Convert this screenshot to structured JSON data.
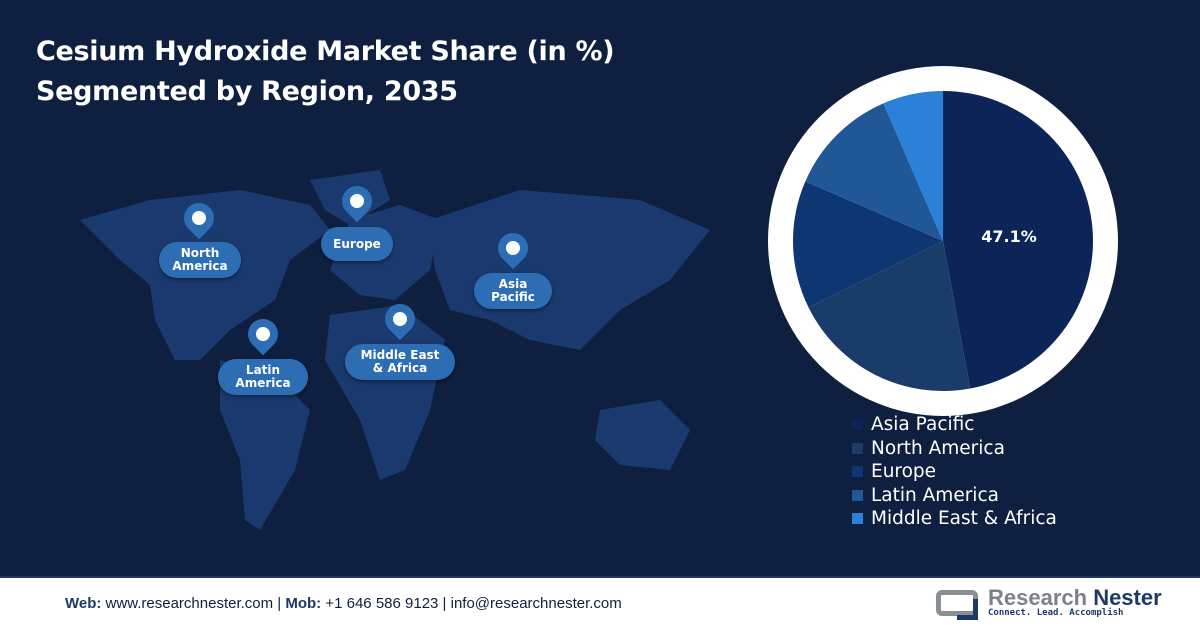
{
  "title_line1": "Cesium Hydroxide Market Share (in %)",
  "title_line2": "Segmented by Region, 2035",
  "map_labels": [
    "North\nAmerica",
    "Europe",
    "Asia\nPacific",
    "Latin\nAmerica",
    "Middle East\n& Africa"
  ],
  "chart_data": {
    "type": "pie",
    "title": "Cesium Hydroxide Market Share (in %) Segmented by Region, 2035",
    "categories": [
      "Asia Pacific",
      "North America",
      "Europe",
      "Latin America",
      "Middle East & Africa"
    ],
    "values": [
      47.1,
      20.6,
      13.8,
      12.0,
      6.5
    ],
    "data_labels": [
      "47.1%",
      "",
      "",
      "",
      ""
    ],
    "colors": [
      "#0c2457",
      "#1a3c69",
      "#0d3673",
      "#1f5797",
      "#2b80d8"
    ],
    "legend_position": "bottom-right",
    "start_angle": "12 o'clock, clockwise"
  },
  "footer": {
    "web_label": "Web:",
    "web": " www.researchnester.com | ",
    "mob_label": "Mob:",
    "mob": " +1 646 586 9123 | info@researchnester.com",
    "logo_name_a": "Research ",
    "logo_name_b": "Nester",
    "logo_tagline": "Connect. Lead. Accomplish"
  }
}
